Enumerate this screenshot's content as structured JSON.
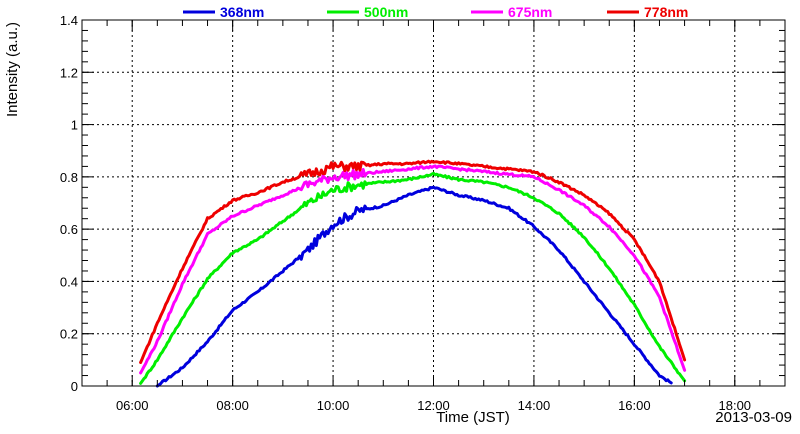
{
  "chart_data": {
    "type": "line",
    "title": "",
    "xlabel": "Time (JST)",
    "ylabel": "Intensity (a.u.)",
    "date_label": "2013-03-09",
    "xlim": [
      "05:00",
      "19:00"
    ],
    "ylim": [
      0,
      1.4
    ],
    "x_ticks": [
      "06:00",
      "08:00",
      "10:00",
      "12:00",
      "14:00",
      "16:00",
      "18:00"
    ],
    "y_ticks": [
      "0",
      "0.2",
      "0.4",
      "0.6",
      "0.8",
      "1",
      "1.2",
      "1.4"
    ],
    "grid": true,
    "legend_position": "top",
    "series": [
      {
        "name": "368nm",
        "color": "#0000dd",
        "x": [
          "06:30",
          "07:00",
          "07:30",
          "08:00",
          "08:30",
          "09:00",
          "09:30",
          "10:00",
          "10:30",
          "11:00",
          "11:30",
          "12:00",
          "12:30",
          "13:00",
          "13:30",
          "14:00",
          "14:30",
          "15:00",
          "15:30",
          "16:00",
          "16:30",
          "16:45"
        ],
        "y": [
          0.0,
          0.07,
          0.17,
          0.29,
          0.36,
          0.44,
          0.52,
          0.62,
          0.67,
          0.69,
          0.73,
          0.76,
          0.73,
          0.71,
          0.68,
          0.61,
          0.52,
          0.4,
          0.28,
          0.16,
          0.04,
          0.01
        ]
      },
      {
        "name": "500nm",
        "color": "#00ee00",
        "x": [
          "06:10",
          "06:30",
          "07:00",
          "07:30",
          "08:00",
          "08:30",
          "09:00",
          "09:30",
          "10:00",
          "10:30",
          "11:00",
          "11:30",
          "12:00",
          "12:30",
          "13:00",
          "13:30",
          "14:00",
          "14:30",
          "15:00",
          "15:30",
          "16:00",
          "16:30",
          "17:00"
        ],
        "y": [
          0.01,
          0.1,
          0.26,
          0.41,
          0.51,
          0.56,
          0.63,
          0.7,
          0.75,
          0.77,
          0.78,
          0.79,
          0.81,
          0.79,
          0.78,
          0.76,
          0.72,
          0.66,
          0.57,
          0.45,
          0.31,
          0.15,
          0.02
        ]
      },
      {
        "name": "675nm",
        "color": "#ff00ff",
        "x": [
          "06:10",
          "06:30",
          "07:00",
          "07:30",
          "08:00",
          "08:30",
          "09:00",
          "09:30",
          "10:00",
          "10:30",
          "11:00",
          "11:30",
          "12:00",
          "12:30",
          "13:00",
          "13:30",
          "14:00",
          "14:30",
          "15:00",
          "15:30",
          "16:00",
          "16:30",
          "17:00"
        ],
        "y": [
          0.05,
          0.17,
          0.39,
          0.58,
          0.65,
          0.69,
          0.73,
          0.77,
          0.8,
          0.81,
          0.82,
          0.83,
          0.84,
          0.83,
          0.82,
          0.81,
          0.8,
          0.75,
          0.69,
          0.61,
          0.5,
          0.34,
          0.06
        ]
      },
      {
        "name": "778nm",
        "color": "#ee0000",
        "x": [
          "06:10",
          "06:30",
          "07:00",
          "07:30",
          "08:00",
          "08:30",
          "09:00",
          "09:30",
          "10:00",
          "10:30",
          "11:00",
          "11:30",
          "12:00",
          "12:30",
          "13:00",
          "13:30",
          "14:00",
          "14:30",
          "15:00",
          "15:30",
          "16:00",
          "16:30",
          "17:00"
        ],
        "y": [
          0.09,
          0.24,
          0.45,
          0.64,
          0.71,
          0.74,
          0.78,
          0.81,
          0.84,
          0.84,
          0.85,
          0.85,
          0.86,
          0.85,
          0.84,
          0.83,
          0.82,
          0.78,
          0.73,
          0.66,
          0.56,
          0.4,
          0.1
        ]
      }
    ]
  }
}
